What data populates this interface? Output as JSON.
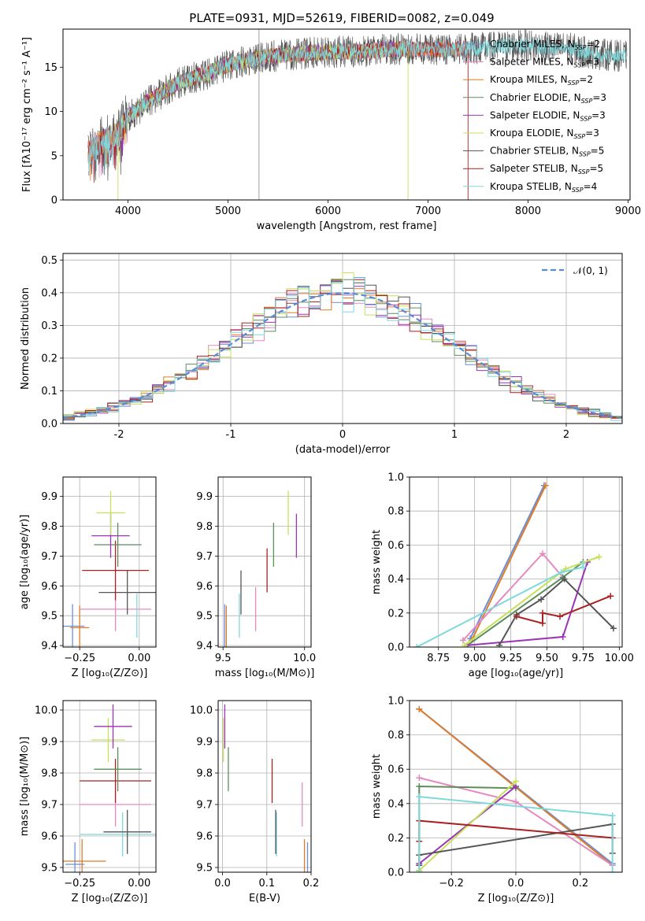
{
  "title": "PLATE=0931, MJD=52619, FIBERID=0082, z=0.049",
  "colors": {
    "Chabrier MILES": "#6a8fd8",
    "Salpeter MILES": "#e58ac0",
    "Kroupa MILES": "#e07b28",
    "Chabrier ELODIE": "#5c8e5c",
    "Salpeter ELODIE": "#9b34b5",
    "Kroupa ELODIE": "#c7e05a",
    "Chabrier STELIB": "#555555",
    "Salpeter STELIB": "#a82222",
    "Kroupa STELIB": "#7fd8dc"
  },
  "legend_entries": [
    {
      "name": "Chabrier MILES",
      "label": "Chabrier MILES, N",
      "nssp": "=2"
    },
    {
      "name": "Salpeter MILES",
      "label": "Salpeter MILES, N",
      "nssp": "=3"
    },
    {
      "name": "Kroupa MILES",
      "label": "Kroupa MILES, N",
      "nssp": "=2"
    },
    {
      "name": "Chabrier ELODIE",
      "label": "Chabrier ELODIE, N",
      "nssp": "=3"
    },
    {
      "name": "Salpeter ELODIE",
      "label": "Salpeter ELODIE, N",
      "nssp": "=3"
    },
    {
      "name": "Kroupa ELODIE",
      "label": "Kroupa ELODIE, N",
      "nssp": "=3"
    },
    {
      "name": "Chabrier STELIB",
      "label": "Chabrier STELIB, N",
      "nssp": "=5"
    },
    {
      "name": "Salpeter STELIB",
      "label": "Salpeter STELIB, N",
      "nssp": "=5"
    },
    {
      "name": "Kroupa STELIB",
      "label": "Kroupa STELIB, N",
      "nssp": "=4"
    }
  ],
  "legend_sub": "SSP",
  "norm_legend": "𝒩(0, 1)",
  "chart_data": [
    {
      "id": "spectrum",
      "type": "line",
      "xlabel": "wavelength [Angstrom, rest frame]",
      "ylabel": "Flux [fλ10⁻¹⁷ erg cm⁻² s⁻¹ A⁻¹]",
      "xlim": [
        3350,
        9020
      ],
      "ylim": [
        0,
        19.3
      ],
      "xticks": [
        4000,
        5000,
        6000,
        7000,
        8000,
        9000
      ],
      "yticks": [
        0,
        5,
        10,
        15
      ],
      "continuum": {
        "x": [
          3600,
          3700,
          3800,
          3900,
          4000,
          4100,
          4200,
          4300,
          4400,
          4500,
          4600,
          4700,
          4800,
          4900,
          5000,
          5200,
          5400,
          5600,
          5800,
          6000,
          6200,
          6400,
          6600,
          6800,
          7000,
          7200,
          7400,
          7600,
          7800,
          8000,
          8200,
          8400,
          8600,
          8800,
          8990
        ],
        "y": [
          5.2,
          6.3,
          7.0,
          7.3,
          9.5,
          10.2,
          11.2,
          11.8,
          12.5,
          13.2,
          13.6,
          14.0,
          14.3,
          14.8,
          15.2,
          15.8,
          16.2,
          16.4,
          16.6,
          16.7,
          16.8,
          16.8,
          17.0,
          17.1,
          17.0,
          17.0,
          17.1,
          17.2,
          17.4,
          17.5,
          17.2,
          17.2,
          16.6,
          16.4,
          16.2
        ]
      },
      "series_extent": {
        "Chabrier MILES": [
          3600,
          7400
        ],
        "Salpeter MILES": [
          3600,
          7400
        ],
        "Kroupa MILES": [
          3600,
          7400
        ],
        "Chabrier ELODIE": [
          3900,
          6800
        ],
        "Salpeter ELODIE": [
          3900,
          6800
        ],
        "Kroupa ELODIE": [
          3900,
          6800
        ],
        "Chabrier STELIB": [
          3600,
          8990
        ],
        "Salpeter STELIB": [
          3600,
          7400
        ],
        "Kroupa STELIB": [
          3600,
          8990
        ]
      }
    },
    {
      "id": "residuals",
      "type": "area",
      "xlabel": "(data-model)/error",
      "ylabel": "Normed distribution",
      "xlim": [
        -2.5,
        2.5
      ],
      "ylim": [
        0,
        0.52
      ],
      "xticks": [
        -2,
        -1,
        0,
        1,
        2
      ],
      "yticks": [
        0.0,
        0.1,
        0.2,
        0.3,
        0.4,
        0.5
      ],
      "bin_width": 0.1,
      "series": [
        "Chabrier MILES",
        "Salpeter MILES",
        "Kroupa MILES",
        "Chabrier ELODIE",
        "Salpeter ELODIE",
        "Kroupa ELODIE",
        "Chabrier STELIB",
        "Salpeter STELIB",
        "Kroupa STELIB"
      ],
      "reference_curve": "N(0,1)"
    },
    {
      "id": "age_vs_Z",
      "type": "scatter",
      "xlabel": "Z [log₁₀(Z/Z⊙)]",
      "ylabel": "age  [log₁₀(age/yr)]",
      "xlim": [
        -0.32,
        0.07
      ],
      "ylim": [
        9.395,
        9.965
      ],
      "xticks": [
        -0.25,
        0.0
      ],
      "xticklabels": [
        "−0.25",
        "0.00"
      ],
      "yticks": [
        9.4,
        9.5,
        9.6,
        9.7,
        9.8,
        9.9
      ],
      "points": [
        {
          "s": "Chabrier MILES",
          "x": -0.28,
          "xerr": 0.05,
          "y": 9.465,
          "yerr": 0.0
        },
        {
          "s": "Kroupa MILES",
          "x": -0.25,
          "xerr": 0.04,
          "y": 9.46,
          "yerr": 0.0
        },
        {
          "s": "Salpeter MILES",
          "x": -0.1,
          "xerr": 0.15,
          "y": 9.522,
          "yerr": 0.0
        },
        {
          "s": "Kroupa STELIB",
          "x": -0.01,
          "xerr": 0.0,
          "y": 9.5,
          "yerr": 0.0
        },
        {
          "s": "Chabrier STELIB",
          "x": -0.05,
          "xerr": 0.12,
          "y": 9.578,
          "yerr": 0.0
        },
        {
          "s": "Salpeter STELIB",
          "x": -0.1,
          "xerr": 0.14,
          "y": 9.652,
          "yerr": 0.1
        },
        {
          "s": "Chabrier ELODIE",
          "x": -0.09,
          "xerr": 0.1,
          "y": 9.738,
          "yerr": 0.0
        },
        {
          "s": "Salpeter ELODIE",
          "x": -0.12,
          "xerr": 0.08,
          "y": 9.768,
          "yerr": 0.0
        },
        {
          "s": "Kroupa ELODIE",
          "x": -0.12,
          "xerr": 0.06,
          "y": 9.845,
          "yerr": 0.04
        }
      ]
    },
    {
      "id": "age_vs_mass",
      "type": "scatter",
      "xlabel": "mass [log₁₀(M/M⊙)]",
      "ylabel": "",
      "xlim": [
        9.47,
        10.04
      ],
      "ylim": [
        9.395,
        9.965
      ],
      "xticks": [
        9.5,
        10.0
      ],
      "xticklabels": [
        "9.5",
        "10.0"
      ],
      "yticks": [
        9.4,
        9.5,
        9.6,
        9.7,
        9.8,
        9.9
      ],
      "points": [
        {
          "s": "Chabrier MILES",
          "x": 9.51,
          "xerr": 0.0,
          "y": 9.465,
          "yerr": 0.0
        },
        {
          "s": "Kroupa MILES",
          "x": 9.52,
          "xerr": 0.0,
          "y": 9.46,
          "yerr": 0.0
        },
        {
          "s": "Salpeter MILES",
          "x": 9.7,
          "xerr": 0.0,
          "y": 9.522,
          "yerr": 0.0
        },
        {
          "s": "Kroupa STELIB",
          "x": 9.6,
          "xerr": 0.0,
          "y": 9.5,
          "yerr": 0.0
        },
        {
          "s": "Chabrier STELIB",
          "x": 9.61,
          "xerr": 0.0,
          "y": 9.578,
          "yerr": 0.0
        },
        {
          "s": "Salpeter STELIB",
          "x": 9.77,
          "xerr": 0.0,
          "y": 9.652,
          "yerr": 0.0
        },
        {
          "s": "Chabrier ELODIE",
          "x": 9.81,
          "xerr": 0.0,
          "y": 9.738,
          "yerr": 0.0
        },
        {
          "s": "Salpeter ELODIE",
          "x": 9.95,
          "xerr": 0.0,
          "y": 9.768,
          "yerr": 0.0
        },
        {
          "s": "Kroupa ELODIE",
          "x": 9.9,
          "xerr": 0.0,
          "y": 9.845,
          "yerr": 0.0
        }
      ]
    },
    {
      "id": "weight_vs_age",
      "type": "line",
      "xlabel": "age  [log₁₀(age/yr)]",
      "ylabel": "mass weight",
      "xlim": [
        8.55,
        10.02
      ],
      "ylim": [
        0,
        1.0
      ],
      "xticks": [
        8.75,
        9.0,
        9.25,
        9.5,
        9.75,
        10.0
      ],
      "xticklabels": [
        "8.75",
        "9.00",
        "9.25",
        "9.50",
        "9.75",
        "10.00"
      ],
      "yticks": [
        0.0,
        0.2,
        0.4,
        0.6,
        0.8,
        1.0
      ],
      "series": [
        {
          "name": "Chabrier MILES",
          "x": [
            8.97,
            9.48
          ],
          "y": [
            0.05,
            0.95
          ]
        },
        {
          "name": "Kroupa MILES",
          "x": [
            8.98,
            9.49
          ],
          "y": [
            0.04,
            0.95
          ]
        },
        {
          "name": "Salpeter MILES",
          "x": [
            8.92,
            9.47,
            9.61
          ],
          "y": [
            0.04,
            0.55,
            0.41
          ]
        },
        {
          "name": "Chabrier ELODIE",
          "x": [
            8.95,
            9.61,
            9.75
          ],
          "y": [
            0.01,
            0.41,
            0.5
          ]
        },
        {
          "name": "Salpeter ELODIE",
          "x": [
            8.95,
            9.61,
            9.78
          ],
          "y": [
            0.01,
            0.06,
            0.5
          ]
        },
        {
          "name": "Kroupa ELODIE",
          "x": [
            8.93,
            9.63,
            9.86
          ],
          "y": [
            0.01,
            0.46,
            0.53
          ]
        },
        {
          "name": "Chabrier STELIB",
          "x": [
            9.17,
            9.29,
            9.46,
            9.62,
            9.96
          ],
          "y": [
            0.01,
            0.19,
            0.28,
            0.4,
            0.11
          ]
        },
        {
          "name": "Salpeter STELIB",
          "x": [
            9.29,
            9.47,
            9.47,
            9.59,
            9.94
          ],
          "y": [
            0.18,
            0.14,
            0.2,
            0.18,
            0.3
          ]
        },
        {
          "name": "Kroupa STELIB",
          "x": [
            8.6,
            9.6,
            9.75,
            9.75
          ],
          "y": [
            0.0,
            0.44,
            0.47,
            0.49
          ]
        }
      ]
    },
    {
      "id": "mass_vs_Z",
      "type": "scatter",
      "xlabel": "Z [log₁₀(Z/Z⊙)]",
      "ylabel": "mass [log₁₀(M/M⊙)]",
      "xlim": [
        -0.32,
        0.07
      ],
      "ylim": [
        9.485,
        10.03
      ],
      "xticks": [
        -0.25,
        0.0
      ],
      "xticklabels": [
        "−0.25",
        "0.00"
      ],
      "yticks": [
        9.5,
        9.6,
        9.7,
        9.8,
        9.9,
        10.0
      ],
      "yticklabels": [
        "9.5",
        "9.6",
        "9.7",
        "9.8",
        "9.9",
        "10.0"
      ],
      "points": [
        {
          "s": "Chabrier MILES",
          "x": -0.27,
          "xerr": 0.04,
          "y": 9.51,
          "yerr": 0.0
        },
        {
          "s": "Kroupa MILES",
          "x": -0.24,
          "xerr": 0.1,
          "y": 9.52,
          "yerr": 0.0
        },
        {
          "s": "Kroupa STELIB",
          "x": -0.07,
          "xerr": 0.18,
          "y": 9.605,
          "yerr": 0.0
        },
        {
          "s": "Chabrier STELIB",
          "x": -0.05,
          "xerr": 0.1,
          "y": 9.613,
          "yerr": 0.06
        },
        {
          "s": "Salpeter MILES",
          "x": -0.1,
          "xerr": 0.15,
          "y": 9.7,
          "yerr": 0.0
        },
        {
          "s": "Salpeter STELIB",
          "x": -0.1,
          "xerr": 0.15,
          "y": 9.775,
          "yerr": 0.06
        },
        {
          "s": "Chabrier ELODIE",
          "x": -0.09,
          "xerr": 0.1,
          "y": 9.812,
          "yerr": 0.0
        },
        {
          "s": "Kroupa ELODIE",
          "x": -0.13,
          "xerr": 0.07,
          "y": 9.905,
          "yerr": 0.04
        },
        {
          "s": "Salpeter ELODIE",
          "x": -0.11,
          "xerr": 0.08,
          "y": 9.948,
          "yerr": 0.05
        }
      ]
    },
    {
      "id": "mass_vs_ebv",
      "type": "scatter",
      "xlabel": "E(B-V)",
      "ylabel": "",
      "xlim": [
        -0.01,
        0.2
      ],
      "ylim": [
        9.485,
        10.03
      ],
      "xticks": [
        0.0,
        0.1,
        0.2
      ],
      "xticklabels": [
        "0.0",
        "0.1",
        "0.2"
      ],
      "yticks": [
        9.5,
        9.6,
        9.7,
        9.8,
        9.9,
        10.0
      ],
      "yticklabels": [
        "9.5",
        "9.6",
        "9.7",
        "9.8",
        "9.9",
        "10.0"
      ],
      "points": [
        {
          "s": "Chabrier MILES",
          "x": 0.192,
          "xerr": 0.0,
          "y": 9.51,
          "yerr": 0.0
        },
        {
          "s": "Kroupa MILES",
          "x": 0.185,
          "xerr": 0.0,
          "y": 9.52,
          "yerr": 0.0
        },
        {
          "s": "Kroupa STELIB",
          "x": 0.122,
          "xerr": 0.0,
          "y": 9.605,
          "yerr": 0.0
        },
        {
          "s": "Chabrier STELIB",
          "x": 0.12,
          "xerr": 0.0,
          "y": 9.613,
          "yerr": 0.0
        },
        {
          "s": "Salpeter MILES",
          "x": 0.18,
          "xerr": 0.0,
          "y": 9.7,
          "yerr": 0.0
        },
        {
          "s": "Salpeter STELIB",
          "x": 0.112,
          "xerr": 0.0,
          "y": 9.775,
          "yerr": 0.0
        },
        {
          "s": "Chabrier ELODIE",
          "x": 0.013,
          "xerr": 0.0,
          "y": 9.812,
          "yerr": 0.0
        },
        {
          "s": "Kroupa ELODIE",
          "x": 0.002,
          "xerr": 0.0,
          "y": 9.905,
          "yerr": 0.0
        },
        {
          "s": "Salpeter ELODIE",
          "x": 0.005,
          "xerr": 0.0,
          "y": 9.948,
          "yerr": 0.0
        }
      ]
    },
    {
      "id": "weight_vs_Z",
      "type": "line",
      "xlabel": "Z [log₁₀(Z/Z⊙)]",
      "ylabel": "mass weight",
      "xlim": [
        -0.33,
        0.33
      ],
      "ylim": [
        0,
        1.0
      ],
      "xticks": [
        -0.2,
        0.0,
        0.2
      ],
      "xticklabels": [
        "−0.2",
        "0.0",
        "0.2"
      ],
      "yticks": [
        0.0,
        0.2,
        0.4,
        0.6,
        0.8,
        1.0
      ],
      "series": [
        {
          "name": "Chabrier MILES",
          "x": [
            -0.3,
            0.3
          ],
          "y": [
            0.95,
            0.05
          ]
        },
        {
          "name": "Kroupa MILES",
          "x": [
            -0.3,
            0.3
          ],
          "y": [
            0.95,
            0.04
          ]
        },
        {
          "name": "Salpeter MILES",
          "x": [
            -0.3,
            0.0,
            0.3
          ],
          "y": [
            0.55,
            0.41,
            0.04
          ]
        },
        {
          "name": "Chabrier ELODIE",
          "x": [
            -0.3,
            -0.3,
            0.0
          ],
          "y": [
            0.01,
            0.5,
            0.49
          ]
        },
        {
          "name": "Salpeter ELODIE",
          "x": [
            -0.3,
            0.0
          ],
          "y": [
            0.05,
            0.5
          ]
        },
        {
          "name": "Kroupa ELODIE",
          "x": [
            -0.3,
            0.0
          ],
          "y": [
            0.01,
            0.53
          ]
        },
        {
          "name": "Chabrier STELIB",
          "x": [
            -0.3,
            -0.3,
            0.3,
            0.3
          ],
          "y": [
            0.04,
            0.1,
            0.28,
            0.11
          ]
        },
        {
          "name": "Salpeter STELIB",
          "x": [
            -0.3,
            -0.3,
            0.3
          ],
          "y": [
            0.18,
            0.3,
            0.2
          ]
        },
        {
          "name": "Kroupa STELIB",
          "x": [
            -0.3,
            -0.3,
            0.3,
            0.3
          ],
          "y": [
            0.0,
            0.44,
            0.33,
            0.0
          ]
        }
      ]
    }
  ]
}
